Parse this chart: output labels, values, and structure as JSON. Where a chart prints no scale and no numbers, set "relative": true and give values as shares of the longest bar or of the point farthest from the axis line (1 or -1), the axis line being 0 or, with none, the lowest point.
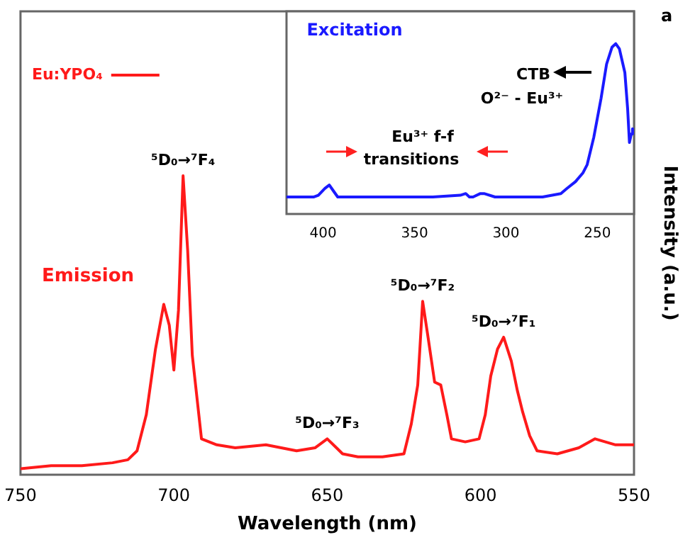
{
  "chart_data": [
    {
      "type": "line",
      "xlabel": "Wavelength (nm)",
      "ylabel": "Intensity (a.u.)",
      "relative": true,
      "xlim": [
        750,
        550
      ],
      "xticks": [
        750,
        700,
        650,
        600,
        550
      ],
      "legend": "top left",
      "marker": "none",
      "x": [
        750,
        740,
        730,
        720,
        715,
        712,
        709,
        706,
        703.3,
        701.5,
        700,
        698.5,
        697,
        695.5,
        694,
        691,
        686,
        680,
        670,
        660,
        654,
        650,
        647,
        645,
        640,
        632,
        625,
        622.6,
        620.5,
        618.9,
        617,
        615,
        613,
        611,
        609.5,
        605,
        600.5,
        598.5,
        596.7,
        594.5,
        592.5,
        590,
        588,
        586.3,
        584,
        581.6,
        575,
        568,
        562.7,
        556,
        550
      ],
      "series": [
        {
          "name": "Eu:YPO₄",
          "color": "#ff1a1a",
          "values": [
            0.02,
            0.03,
            0.03,
            0.04,
            0.05,
            0.08,
            0.2,
            0.42,
            0.57,
            0.5,
            0.35,
            0.55,
            1.0,
            0.75,
            0.4,
            0.12,
            0.1,
            0.09,
            0.1,
            0.08,
            0.09,
            0.12,
            0.09,
            0.07,
            0.06,
            0.06,
            0.07,
            0.17,
            0.3,
            0.58,
            0.45,
            0.31,
            0.3,
            0.2,
            0.12,
            0.11,
            0.12,
            0.2,
            0.33,
            0.42,
            0.46,
            0.38,
            0.28,
            0.21,
            0.13,
            0.08,
            0.07,
            0.09,
            0.12,
            0.1,
            0.1
          ]
        }
      ],
      "annotations": [
        {
          "text": "⁵D₀→⁷F₄",
          "x": 697,
          "y": 1.0
        },
        {
          "text": "⁵D₀→⁷F₂",
          "x": 618.9,
          "y": 0.58
        },
        {
          "text": "⁵D₀→⁷F₁",
          "x": 592.5,
          "y": 0.46
        },
        {
          "text": "⁵D₀→⁷F₃",
          "x": 650,
          "y": 0.12
        },
        "Emission",
        "a"
      ]
    },
    {
      "type": "line",
      "relative": true,
      "xlim": [
        420,
        230
      ],
      "xticks": [
        400,
        350,
        300,
        250
      ],
      "marker": "none",
      "x": [
        420,
        405,
        402.6,
        399,
        396.6,
        394,
        392,
        385,
        378,
        360,
        340,
        325,
        322,
        320,
        318,
        314,
        312,
        306,
        301,
        290,
        280,
        270,
        266.7,
        262,
        258,
        255.6,
        252,
        248,
        245,
        242,
        240,
        238,
        235,
        233.5,
        232.5,
        231.5,
        230.8,
        230
      ],
      "series": [
        {
          "color": "#1a1aff",
          "values": [
            0.1,
            0.1,
            0.11,
            0.15,
            0.17,
            0.13,
            0.1,
            0.1,
            0.1,
            0.1,
            0.1,
            0.11,
            0.12,
            0.1,
            0.1,
            0.12,
            0.12,
            0.1,
            0.1,
            0.1,
            0.1,
            0.12,
            0.15,
            0.19,
            0.24,
            0.29,
            0.45,
            0.68,
            0.88,
            0.98,
            1.0,
            0.97,
            0.83,
            0.62,
            0.42,
            0.47,
            0.5,
            0.49
          ]
        }
      ],
      "annotations": [
        "Excitation",
        "CTB",
        "O²⁻ - Eu³⁺",
        "Eu³⁺ f-f",
        "transitions"
      ]
    }
  ]
}
